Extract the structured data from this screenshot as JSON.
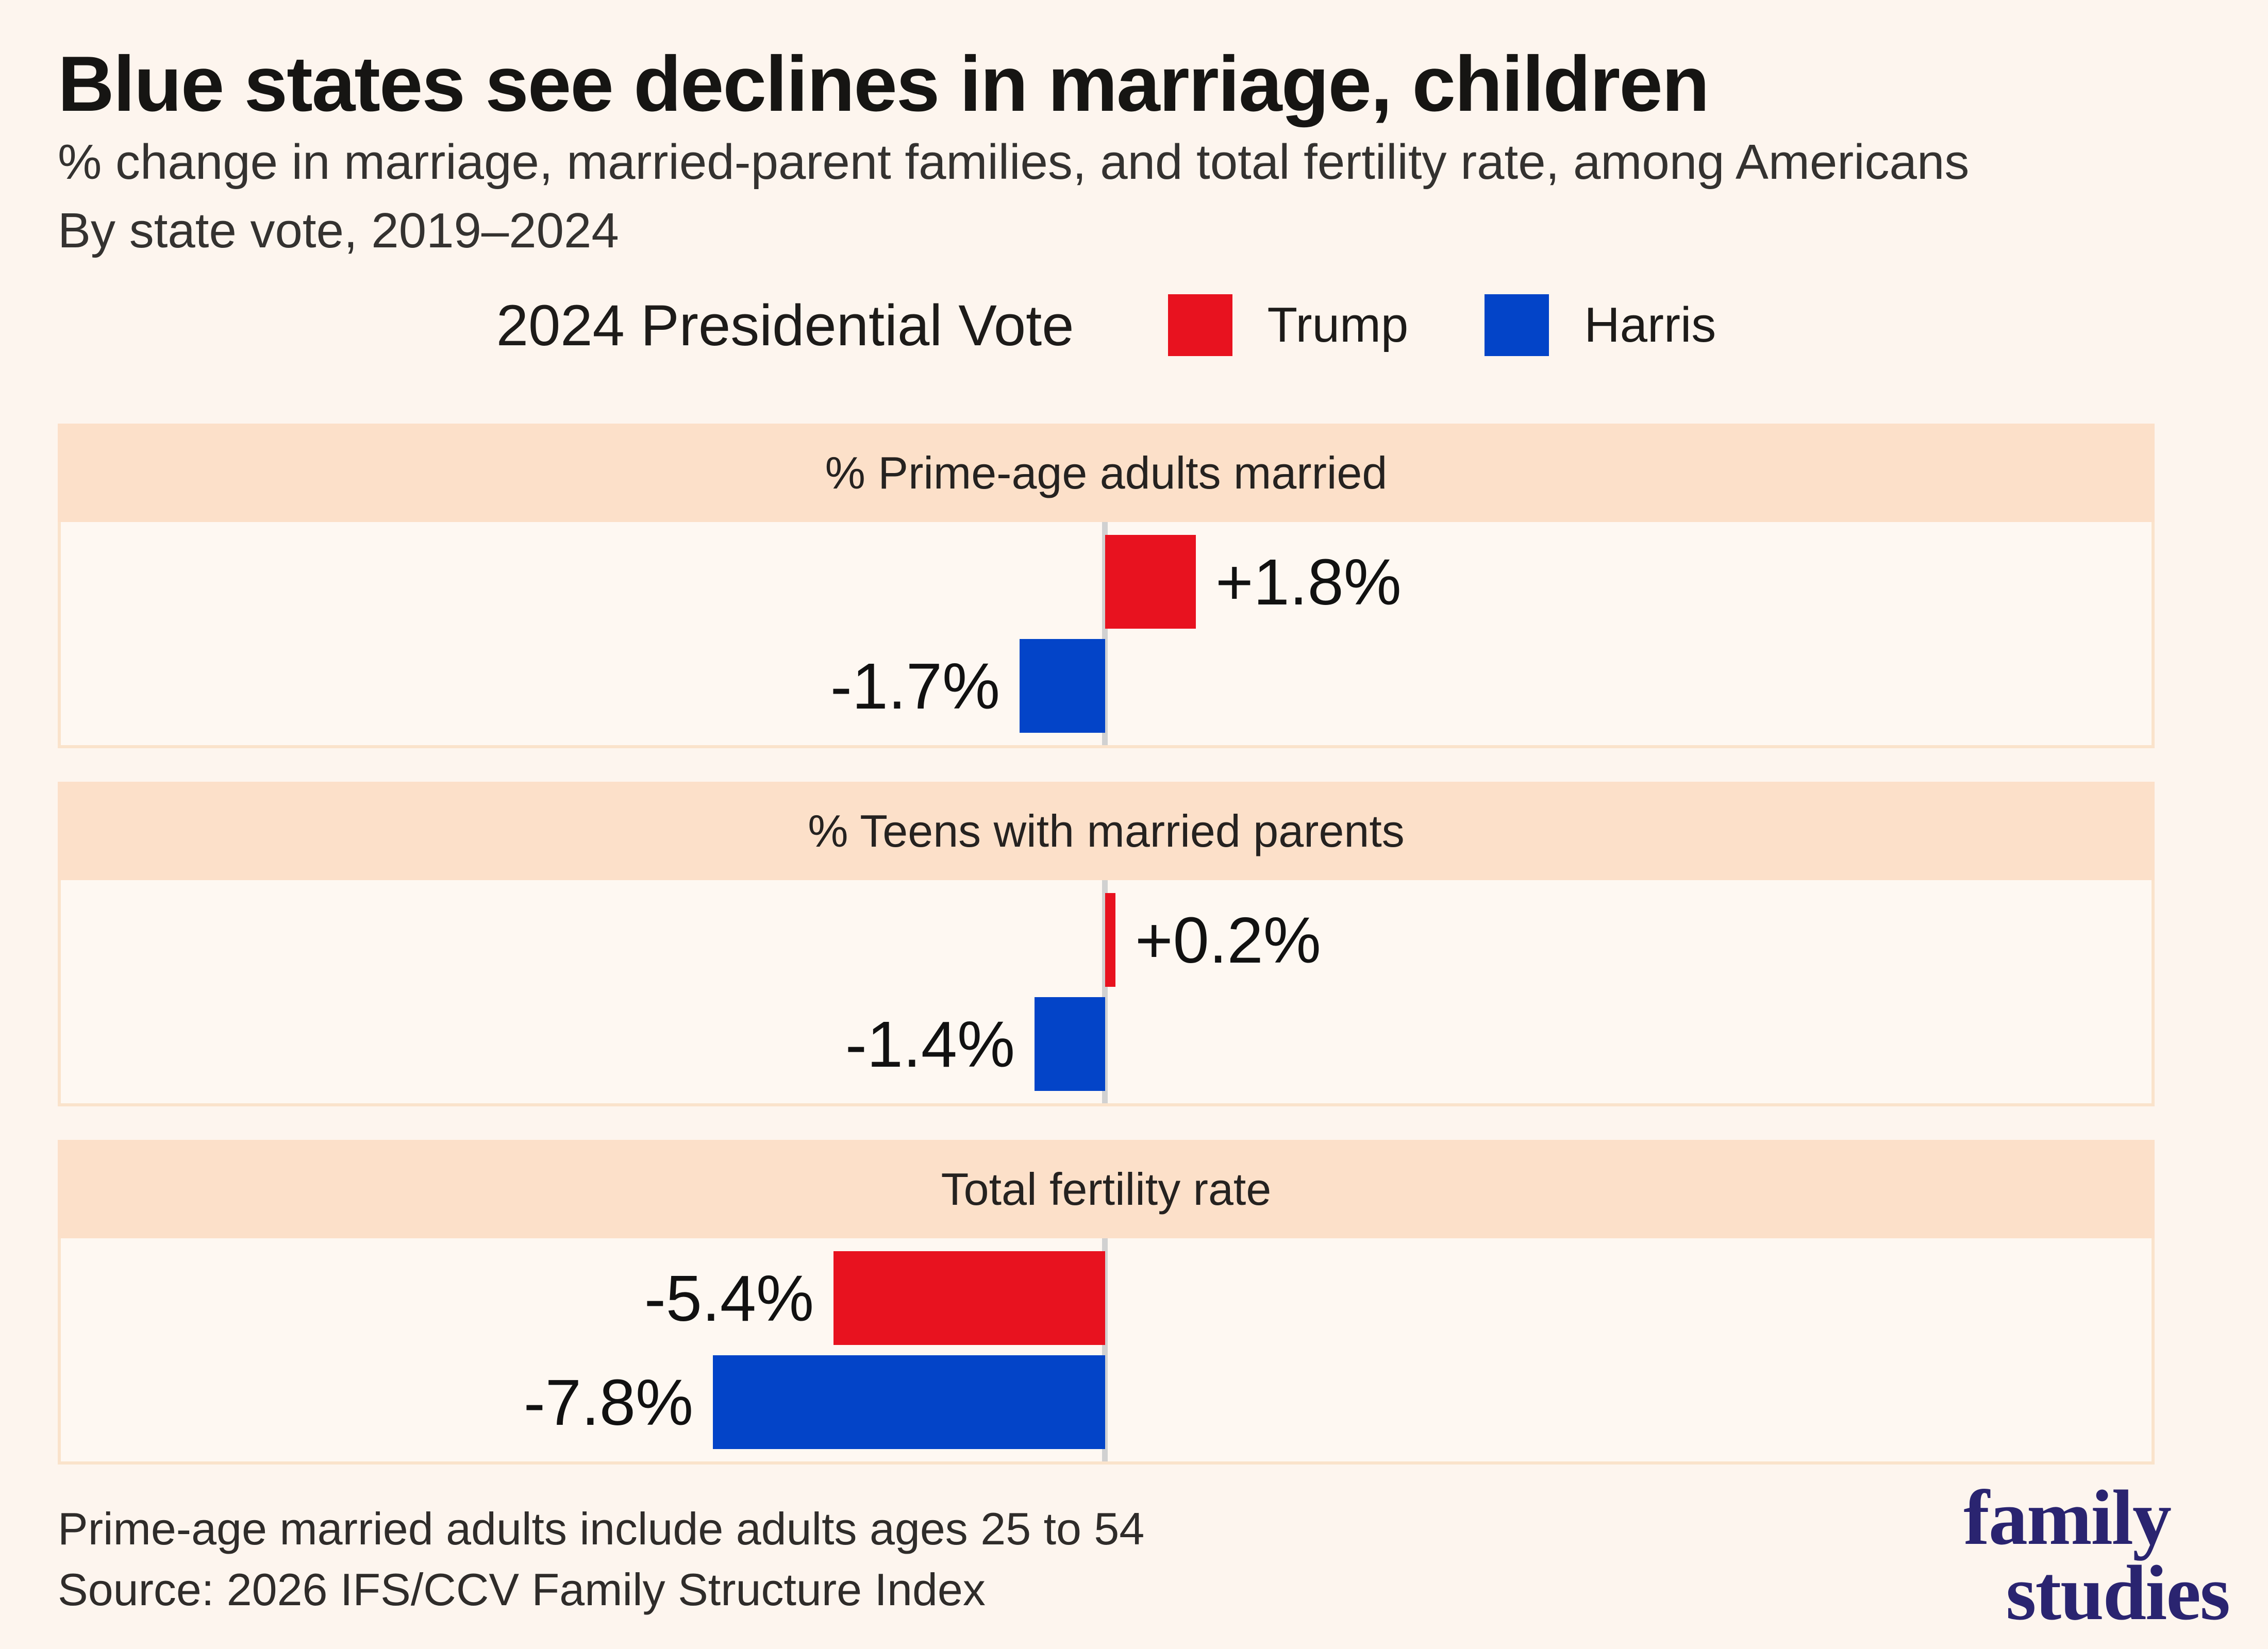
{
  "title": "Blue states see declines in marriage, children",
  "subtitle_line1": "% change in marriage, married-parent families, and total fertility rate, among Americans",
  "subtitle_line2": "By state vote, 2019–2024",
  "legend": {
    "title": "2024 Presidential Vote",
    "items": [
      {
        "label": "Trump",
        "color": "#e8121f"
      },
      {
        "label": "Harris",
        "color": "#0344c8"
      }
    ]
  },
  "chart_data": {
    "type": "bar",
    "orientation": "horizontal-diverging",
    "unit": "percent change 2019–2024",
    "zero_centered": true,
    "grid": false,
    "series_names": [
      "Trump",
      "Harris"
    ],
    "panels": [
      {
        "title": "% Prime-age adults married",
        "values": [
          {
            "name": "Trump",
            "value": 1.8,
            "label": "+1.8%"
          },
          {
            "name": "Harris",
            "value": -1.7,
            "label": "-1.7%"
          }
        ]
      },
      {
        "title": "% Teens with married parents",
        "values": [
          {
            "name": "Trump",
            "value": 0.2,
            "label": "+0.2%"
          },
          {
            "name": "Harris",
            "value": -1.4,
            "label": "-1.4%"
          }
        ]
      },
      {
        "title": "Total fertility rate",
        "values": [
          {
            "name": "Trump",
            "value": -5.4,
            "label": "-5.4%"
          },
          {
            "name": "Harris",
            "value": -7.8,
            "label": "-7.8%"
          }
        ]
      }
    ]
  },
  "footer": {
    "note": "Prime-age married adults include adults ages 25 to 54",
    "source": "Source: 2026 IFS/CCV Family Structure Index"
  },
  "logo": {
    "line1": "family",
    "line2": "studies",
    "color": "#2a2470"
  },
  "colors": {
    "page_background": "#fdf5ee",
    "panel_header_background": "#fce0c9",
    "panel_body_background": "#fef8f2",
    "panel_border": "#fae3cb",
    "zero_line": "#d1d1d1",
    "trump_red": "#e8121f",
    "harris_blue": "#0344c8",
    "logo_navy": "#2a2470"
  }
}
